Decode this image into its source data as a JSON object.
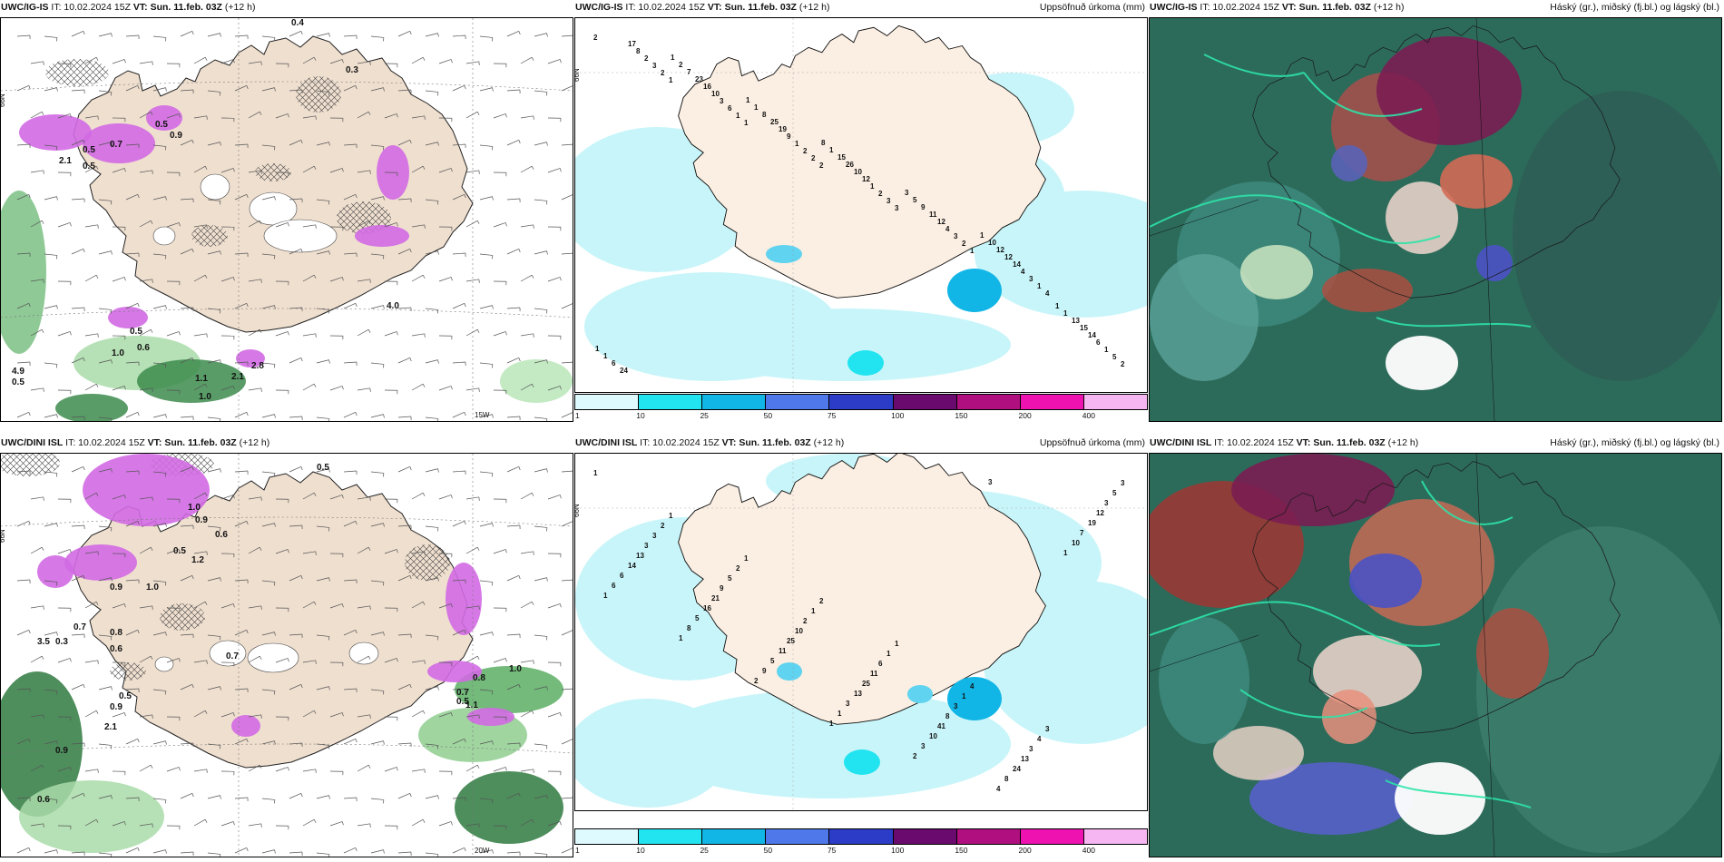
{
  "panels": {
    "p1": {
      "model": "UWC/IG-IS",
      "run": "IT: 10.02.2024 15Z",
      "vt_label": "VT:",
      "vt_value": "Sun. 11.feb. 03Z",
      "lead": "(+12 h)",
      "right": ""
    },
    "p2": {
      "model": "UWC/IG-IS",
      "run": "IT: 10.02.2024 15Z",
      "vt_label": "VT:",
      "vt_value": "Sun. 11.feb. 03Z",
      "lead": "(+12 h)",
      "right": "Uppsöfnuð úrkoma (mm)"
    },
    "p3": {
      "model": "UWC/IG-IS",
      "run": "IT: 10.02.2024 15Z",
      "vt_label": "VT:",
      "vt_value": "Sun. 11.feb. 03Z",
      "lead": "(+12 h)",
      "right": "Háský (gr.), miðský (fj.bl.) og lágský (bl.)"
    },
    "p4": {
      "model": "UWC/DINI ISL",
      "run": "IT: 10.02.2024 15Z",
      "vt_label": "VT:",
      "vt_value": "Sun. 11.feb. 03Z",
      "lead": "(+12 h)",
      "right": ""
    },
    "p5": {
      "model": "UWC/DINI ISL",
      "run": "IT: 10.02.2024 15Z",
      "vt_label": "VT:",
      "vt_value": "Sun. 11.feb. 03Z",
      "lead": "(+12 h)",
      "right": "Uppsöfnuð úrkoma (mm)"
    },
    "p6": {
      "model": "UWC/DINI ISL",
      "run": "IT: 10.02.2024 15Z",
      "vt_label": "VT:",
      "vt_value": "Sun. 11.feb. 03Z",
      "lead": "(+12 h)",
      "right": "Háský (gr.), miðský (fj.bl.) og lágský (bl.)"
    }
  },
  "axes": {
    "lat_label": "66N",
    "lon_15": "15W",
    "lon_20": "20W"
  },
  "colorbar": {
    "labels": [
      "1",
      "10",
      "25",
      "50",
      "75",
      "100",
      "150",
      "200",
      "400"
    ],
    "colors": [
      "#dffaff",
      "#22e4f0",
      "#12b6e6",
      "#4f78ea",
      "#2c3cc6",
      "#6b0a6e",
      "#b0107f",
      "#ee12b0",
      "#f6b6f2"
    ]
  },
  "precip_top": [
    "2",
    "1",
    "1",
    "2",
    "3",
    "1",
    "4",
    "2",
    "2",
    "1",
    "2",
    "3",
    "2",
    "1",
    "5",
    "3",
    "6",
    "2",
    "2",
    "3",
    "3",
    "1",
    "2",
    "3",
    "1",
    "1",
    "4",
    "4",
    "6",
    "8",
    "10",
    "9",
    "12",
    "12",
    "14",
    "14",
    "17",
    "16",
    "19",
    "10",
    "11",
    "12",
    "15",
    "24",
    "23",
    "25",
    "26",
    "9",
    "12",
    "13",
    "6",
    "7",
    "8",
    "15",
    "5",
    "10",
    "1",
    "1",
    "2",
    "1",
    "1",
    "3",
    "1",
    "1",
    "1",
    "1",
    "1",
    "8"
  ],
  "precip_bottom": [
    "1",
    "1",
    "1",
    "2",
    "1",
    "4",
    "3",
    "3",
    "2",
    "2",
    "1",
    "1",
    "1",
    "4",
    "5",
    "3",
    "5",
    "2",
    "6",
    "3",
    "3",
    "3",
    "3",
    "9",
    "10",
    "11",
    "8",
    "13",
    "12",
    "13",
    "21",
    "25",
    "25",
    "41",
    "24",
    "19",
    "14",
    "16",
    "11",
    "13",
    "10",
    "8",
    "7",
    "6",
    "5",
    "5",
    "3",
    "3",
    "4",
    "10",
    "6",
    "8",
    "9",
    "1",
    "2",
    "3",
    "1",
    "1",
    "1",
    "2",
    "1"
  ],
  "fronto_top": [
    "0.4",
    "0.3",
    "0.5",
    "0.9",
    "0.7",
    "0.5",
    "2.1",
    "0.5",
    "4.0",
    "0.5",
    "0.6",
    "1.0",
    "4.9",
    "1.1",
    "2.1",
    "1.0",
    "0.5",
    "2.8"
  ],
  "fronto_bottom": [
    "0.5",
    "1.0",
    "0.9",
    "0.6",
    "0.5",
    "1.2",
    "0.9",
    "1.0",
    "0.8",
    "0.7",
    "3.5",
    "0.6",
    "0.3",
    "0.7",
    "0.5",
    "0.9",
    "1.0",
    "0.8",
    "0.7",
    "0.5",
    "1.1",
    "2.1",
    "0.9",
    "0.6"
  ]
}
